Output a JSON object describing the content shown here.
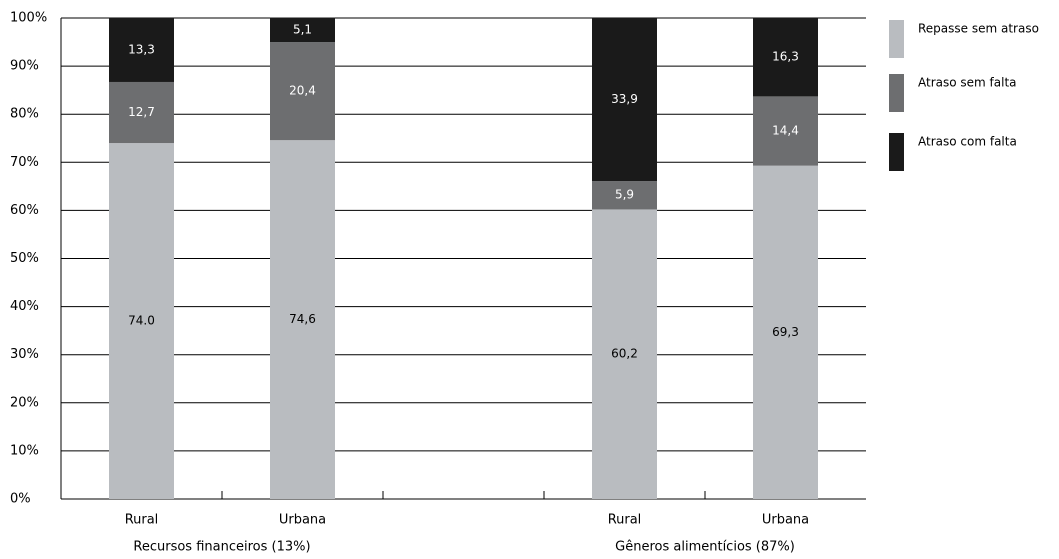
{
  "chart_data": {
    "type": "stacked_bar",
    "categories": [
      "Rural",
      "Urbana",
      null,
      "Rural",
      "Urbana"
    ],
    "group_labels": [
      "Recursos financeiros (13%)",
      "Gêneros alimentícios (87%)"
    ],
    "series": [
      {
        "name": "Repasse sem atraso",
        "color": "#b9bcc0",
        "label_color": "#000000",
        "values": [
          74.0,
          74.6,
          null,
          60.2,
          69.3
        ],
        "value_labels": [
          "74.0",
          "74,6",
          null,
          "60,2",
          "69,3"
        ]
      },
      {
        "name": "Atraso sem falta",
        "color": "#6d6e70",
        "label_color": "#ffffff",
        "values": [
          12.7,
          20.4,
          null,
          5.9,
          14.4
        ],
        "value_labels": [
          "12,7",
          "20,4",
          null,
          "5,9",
          "14,4"
        ]
      },
      {
        "name": "Atraso com falta",
        "color": "#1a1a1a",
        "label_color": "#ffffff",
        "values": [
          13.3,
          5.1,
          null,
          33.9,
          16.3
        ],
        "value_labels": [
          "13,3",
          "5,1",
          null,
          "33,9",
          "16,3"
        ]
      }
    ],
    "ylim": [
      0,
      100
    ],
    "yticks": [
      {
        "value": 0,
        "label": "0%"
      },
      {
        "value": 10,
        "label": "10%"
      },
      {
        "value": 20,
        "label": "20%"
      },
      {
        "value": 30,
        "label": "30%"
      },
      {
        "value": 40,
        "label": "40%"
      },
      {
        "value": 50,
        "label": "50%"
      },
      {
        "value": 60,
        "label": "60%"
      },
      {
        "value": 70,
        "label": "70%"
      },
      {
        "value": 80,
        "label": "80%"
      },
      {
        "value": 90,
        "label": "90%"
      },
      {
        "value": 100,
        "label": "100%"
      }
    ],
    "grid": true,
    "legend": "right"
  }
}
